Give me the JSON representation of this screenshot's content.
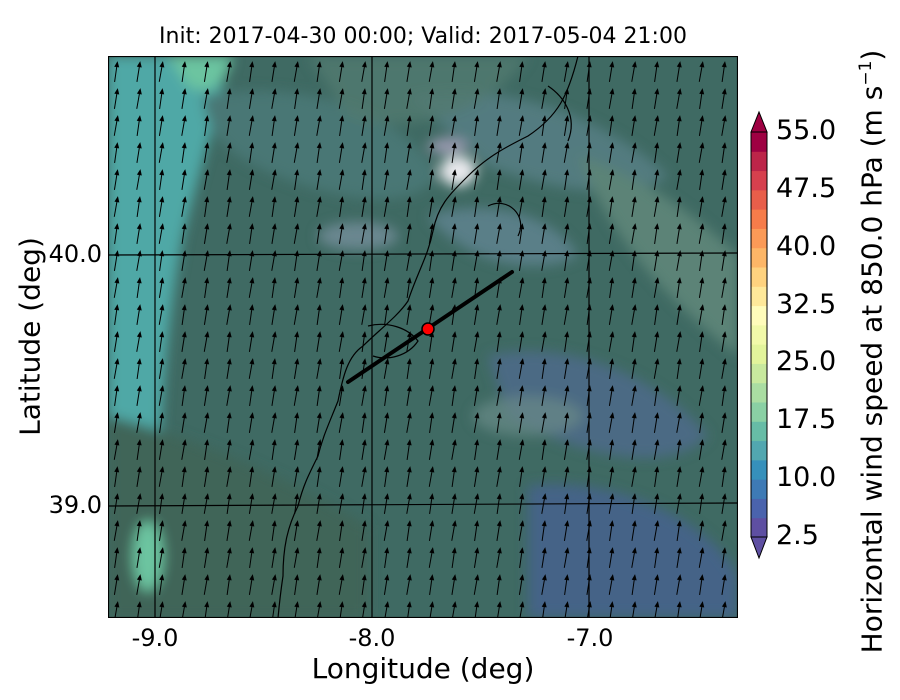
{
  "title": "Init: 2017-04-30 00:00; Valid: 2017-05-04 21:00",
  "xlabel": "Longitude (deg)",
  "ylabel": "Latitude (deg)",
  "xticks": [
    "-9.0",
    "-8.0",
    "-7.0"
  ],
  "yticks": [
    "40.0",
    "39.0"
  ],
  "colorbar": {
    "label_main": "Horizontal wind speed at 850.0 hPa (m s",
    "label_sup": "−1",
    "label_end": ")",
    "ticks": [
      "2.5",
      "10.0",
      "17.5",
      "25.0",
      "32.5",
      "40.0",
      "47.5",
      "55.0"
    ],
    "min": 2.5,
    "max": 55.0,
    "step": 2.5,
    "extend": "both",
    "colors": [
      "#5e4fa2",
      "#4a63ad",
      "#3e7ab5",
      "#3690bb",
      "#52a7b0",
      "#67bca6",
      "#8ad0a4",
      "#aadda2",
      "#c8e99e",
      "#e2f49b",
      "#f1f9a9",
      "#fffcbb",
      "#fee89a",
      "#fed27f",
      "#fdb667",
      "#fb9a57",
      "#f67c4a",
      "#e85e4a",
      "#d6404e",
      "#bc2549",
      "#9e0142"
    ]
  },
  "chart_data": {
    "type": "map",
    "title": "Init: 2017-04-30 00:00; Valid: 2017-05-04 21:00",
    "xlim": [
      -9.2,
      -6.3
    ],
    "ylim": [
      38.55,
      40.78
    ],
    "grid": true,
    "cross_section_line": {
      "start": [
        -8.1,
        39.5
      ],
      "end": [
        -7.35,
        39.94
      ]
    },
    "marker_point": [
      -7.75,
      39.7
    ],
    "marker_color": "#ff0000",
    "wind_direction": "south-southwesterly (arrows pointing north-northeast)"
  }
}
